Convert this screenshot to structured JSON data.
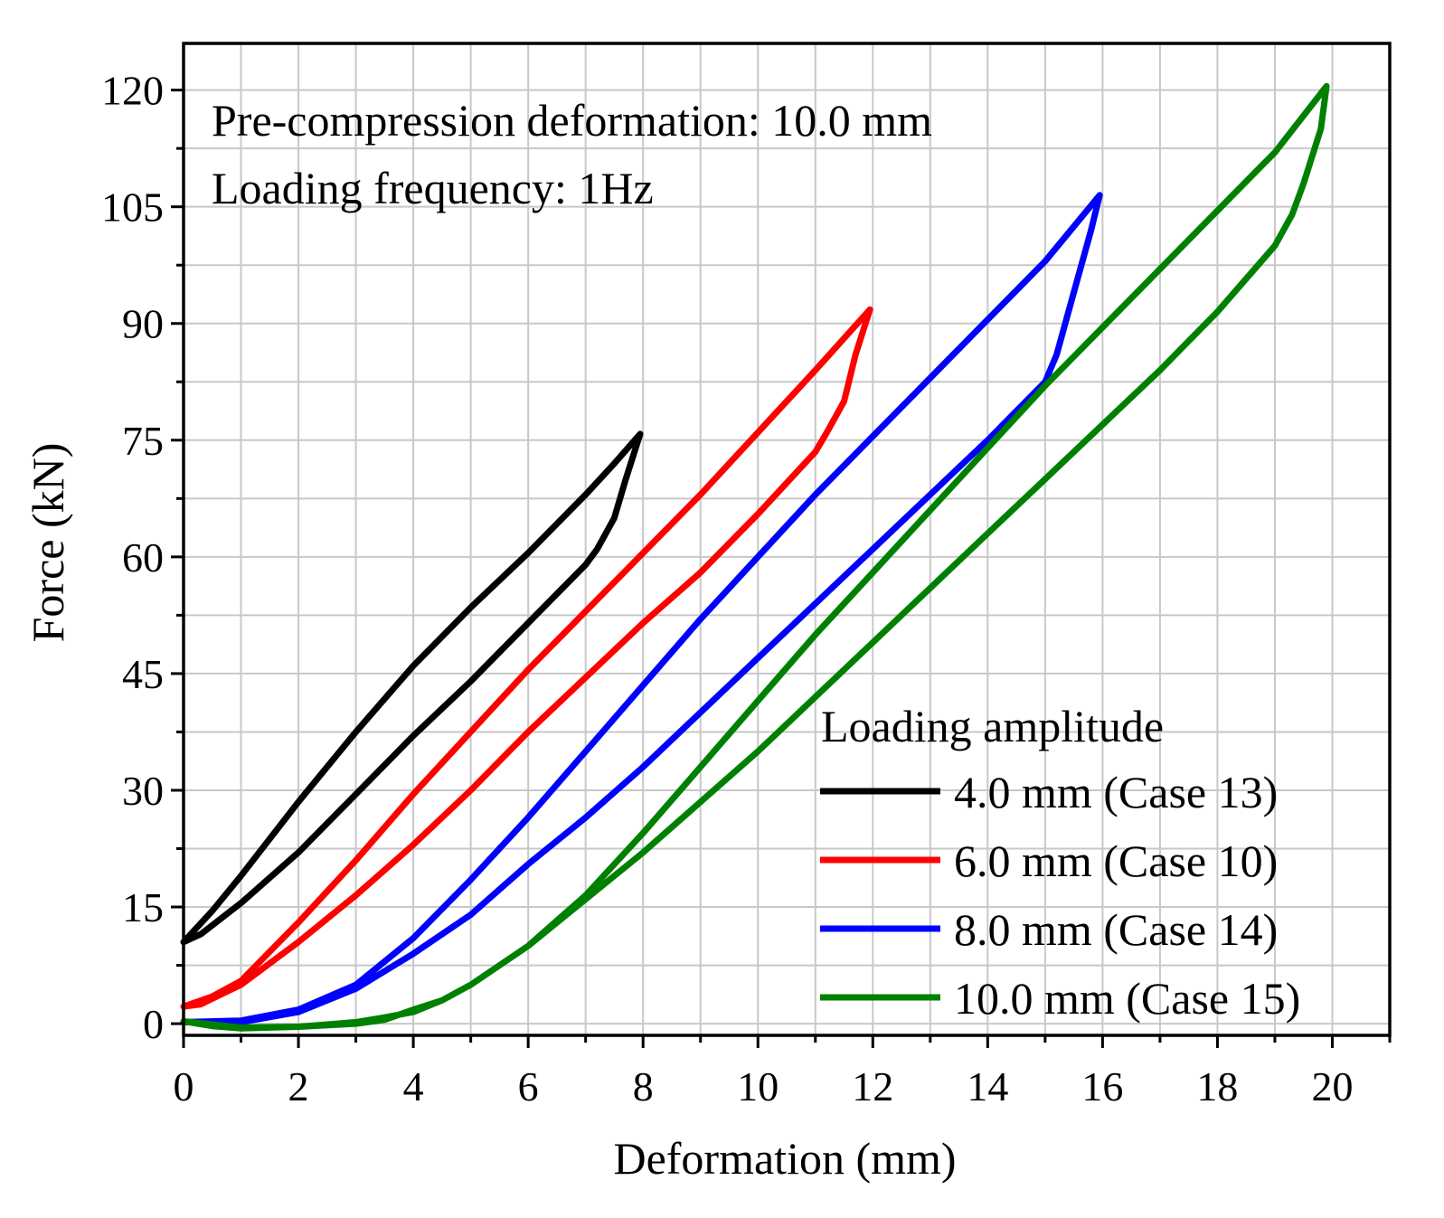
{
  "chart_data": {
    "type": "line",
    "title": "",
    "xlabel": "Deformation (mm)",
    "ylabel": "Force (kN)",
    "xlim": [
      0,
      21
    ],
    "ylim": [
      -1.5,
      126
    ],
    "x_ticks": [
      "0",
      "2",
      "4",
      "6",
      "8",
      "10",
      "12",
      "14",
      "16",
      "18",
      "20"
    ],
    "y_ticks": [
      "0",
      "15",
      "30",
      "45",
      "60",
      "75",
      "90",
      "105",
      "120"
    ],
    "grid": true,
    "annotations": [
      "Pre-compression deformation: 10.0 mm",
      "Loading frequency: 1Hz"
    ],
    "legend_title": "Loading amplitude",
    "legend_position": "bottom-right",
    "series": [
      {
        "name": "4.0 mm (Case 13)",
        "color": "#000000",
        "loading": [
          [
            0.0,
            10.5
          ],
          [
            0.5,
            14.5
          ],
          [
            1,
            19
          ],
          [
            2,
            28.5
          ],
          [
            3,
            37.5
          ],
          [
            4,
            46
          ],
          [
            5,
            53.5
          ],
          [
            6,
            60.5
          ],
          [
            7,
            68
          ],
          [
            7.5,
            72
          ],
          [
            7.95,
            75.8
          ]
        ],
        "unloading": [
          [
            7.95,
            75.8
          ],
          [
            7.7,
            70
          ],
          [
            7.5,
            65
          ],
          [
            7.2,
            61
          ],
          [
            7,
            59
          ],
          [
            6,
            51.5
          ],
          [
            5,
            44
          ],
          [
            4,
            37
          ],
          [
            3,
            29.5
          ],
          [
            2,
            22
          ],
          [
            1,
            15.5
          ],
          [
            0.3,
            11.5
          ],
          [
            0.0,
            10.5
          ]
        ]
      },
      {
        "name": "6.0 mm (Case 10)",
        "color": "#ff0000",
        "loading": [
          [
            0.0,
            2.2
          ],
          [
            0.5,
            3.5
          ],
          [
            1,
            5.5
          ],
          [
            2,
            13
          ],
          [
            3,
            21
          ],
          [
            4,
            29.5
          ],
          [
            5,
            37.5
          ],
          [
            6,
            45.5
          ],
          [
            7,
            53
          ],
          [
            8,
            60.5
          ],
          [
            9,
            68
          ],
          [
            10,
            76
          ],
          [
            11,
            84
          ],
          [
            11.95,
            91.8
          ]
        ],
        "unloading": [
          [
            11.95,
            91.8
          ],
          [
            11.7,
            86
          ],
          [
            11.5,
            80
          ],
          [
            11.2,
            76
          ],
          [
            11,
            73.5
          ],
          [
            10,
            65.5
          ],
          [
            9,
            58
          ],
          [
            8,
            51.5
          ],
          [
            7,
            44.5
          ],
          [
            6,
            37.5
          ],
          [
            5,
            30
          ],
          [
            4,
            23
          ],
          [
            3,
            16.5
          ],
          [
            2,
            10.5
          ],
          [
            1,
            5
          ],
          [
            0.3,
            2.5
          ],
          [
            0.0,
            2.2
          ]
        ]
      },
      {
        "name": "8.0 mm (Case 14)",
        "color": "#0000ff",
        "loading": [
          [
            0.0,
            0.2
          ],
          [
            1,
            0.4
          ],
          [
            2,
            1.8
          ],
          [
            3,
            5
          ],
          [
            4,
            11
          ],
          [
            5,
            18.5
          ],
          [
            6,
            26.5
          ],
          [
            7,
            35
          ],
          [
            8,
            43.5
          ],
          [
            9,
            52
          ],
          [
            10,
            60
          ],
          [
            11,
            68
          ],
          [
            12,
            75.5
          ],
          [
            13,
            83
          ],
          [
            14,
            90.5
          ],
          [
            15,
            98
          ],
          [
            15.95,
            106.5
          ]
        ],
        "unloading": [
          [
            15.95,
            106.5
          ],
          [
            15.8,
            102
          ],
          [
            15.5,
            94
          ],
          [
            15.2,
            86
          ],
          [
            15,
            82.5
          ],
          [
            14,
            75
          ],
          [
            13,
            68
          ],
          [
            12,
            61
          ],
          [
            11,
            54
          ],
          [
            10,
            47
          ],
          [
            9,
            40
          ],
          [
            8,
            33
          ],
          [
            7,
            26.5
          ],
          [
            6,
            20.5
          ],
          [
            5,
            14
          ],
          [
            4,
            9
          ],
          [
            3,
            4.5
          ],
          [
            2,
            1.5
          ],
          [
            1,
            0.2
          ],
          [
            0.0,
            0.2
          ]
        ]
      },
      {
        "name": "10.0 mm (Case 15)",
        "color": "#008000",
        "loading": [
          [
            0.0,
            0.3
          ],
          [
            0.5,
            -0.3
          ],
          [
            1,
            -0.6
          ],
          [
            2,
            -0.4
          ],
          [
            3,
            0
          ],
          [
            3.5,
            0.5
          ],
          [
            4,
            1.8
          ],
          [
            4.5,
            3
          ],
          [
            5,
            5
          ],
          [
            6,
            10
          ],
          [
            7,
            16.5
          ],
          [
            8,
            24.5
          ],
          [
            9,
            33
          ],
          [
            10,
            41.5
          ],
          [
            11,
            50
          ],
          [
            12,
            58
          ],
          [
            13,
            66
          ],
          [
            14,
            74
          ],
          [
            15,
            82
          ],
          [
            16,
            89.5
          ],
          [
            17,
            97
          ],
          [
            18,
            104.5
          ],
          [
            19,
            112
          ],
          [
            19.9,
            120.5
          ]
        ],
        "unloading": [
          [
            19.9,
            120.5
          ],
          [
            19.8,
            115
          ],
          [
            19.5,
            108
          ],
          [
            19.3,
            104
          ],
          [
            19,
            100
          ],
          [
            18,
            91.5
          ],
          [
            17,
            84
          ],
          [
            16,
            77
          ],
          [
            15,
            70
          ],
          [
            14,
            63
          ],
          [
            13,
            56
          ],
          [
            12,
            49
          ],
          [
            11,
            42
          ],
          [
            10,
            35
          ],
          [
            9,
            28.5
          ],
          [
            8,
            22
          ],
          [
            7,
            16
          ],
          [
            6,
            10
          ],
          [
            5,
            5
          ],
          [
            4.5,
            3
          ],
          [
            4,
            1.5
          ],
          [
            3.5,
            0.8
          ],
          [
            3,
            0.2
          ],
          [
            2,
            -0.4
          ],
          [
            1,
            -0.5
          ],
          [
            0.0,
            0.3
          ]
        ]
      }
    ]
  }
}
